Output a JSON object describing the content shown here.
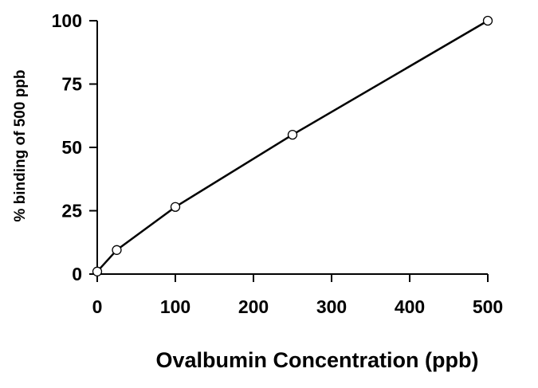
{
  "chart_data": {
    "type": "line",
    "title": "",
    "xlabel": "Ovalbumin Concentration (ppb)",
    "ylabel": "% binding of 500 ppb",
    "xlim": [
      0,
      500
    ],
    "ylim": [
      0,
      100
    ],
    "x_ticks": [
      "0",
      "100",
      "200",
      "300",
      "400",
      "500"
    ],
    "y_ticks": [
      "0",
      "25",
      "50",
      "75",
      "100"
    ],
    "grid": false,
    "legend": "none",
    "line_color": "#000000",
    "marker": "open-circle",
    "series": [
      {
        "x": [
          0,
          25,
          100,
          250,
          500
        ],
        "y": [
          1,
          9.5,
          26.5,
          55,
          100
        ]
      }
    ]
  }
}
